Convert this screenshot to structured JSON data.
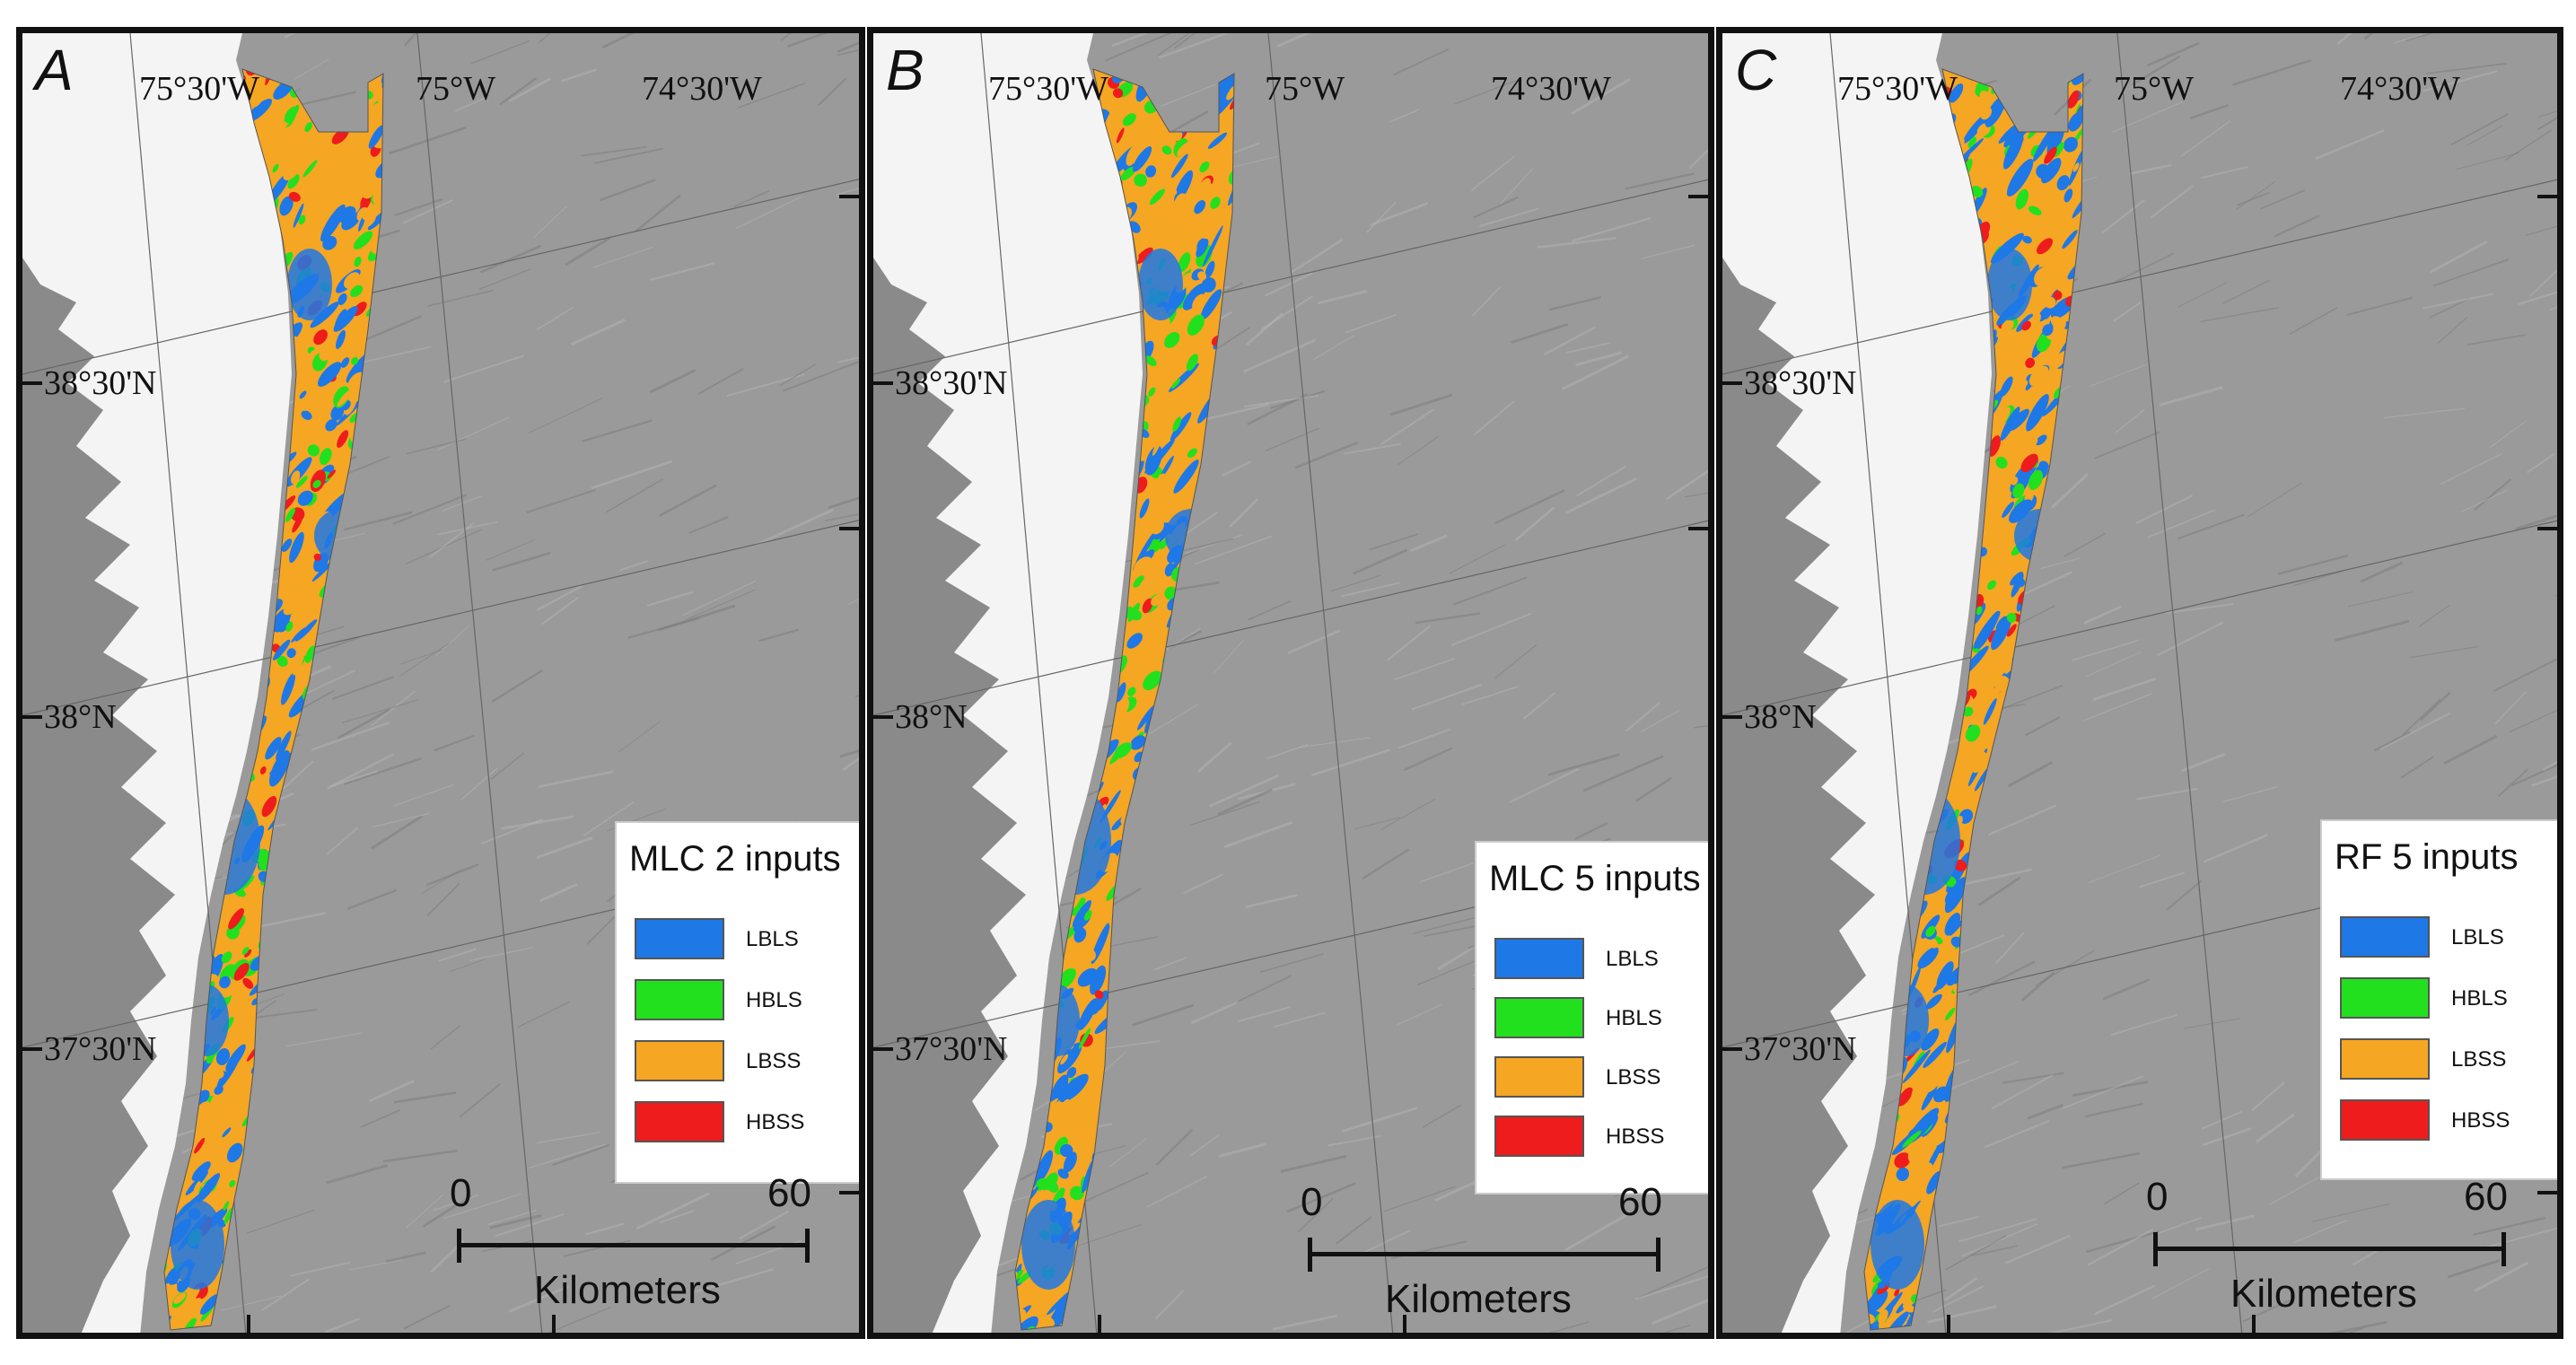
{
  "figure": {
    "colors": {
      "LBLS": "#1e78e6",
      "HBLS": "#22e01e",
      "LBSS": "#f5a623",
      "HBSS": "#ee1c1c",
      "land": "#f4f4f4",
      "seafloor": "#9a9a9a"
    },
    "longitude_labels": [
      "75°30'W",
      "75°W",
      "74°30'W"
    ],
    "latitude_labels": [
      "38°30'N",
      "38°N",
      "37°30'N"
    ],
    "scale_bar": {
      "start": "0",
      "end": "60",
      "unit": "Kilometers"
    },
    "legend_classes": [
      "LBLS",
      "HBLS",
      "LBSS",
      "HBSS"
    ]
  },
  "panels": [
    {
      "letter": "A",
      "legend_title": "MLC 2 inputs"
    },
    {
      "letter": "B",
      "legend_title": "MLC 5 inputs"
    },
    {
      "letter": "C",
      "legend_title": "RF 5 inputs"
    }
  ]
}
